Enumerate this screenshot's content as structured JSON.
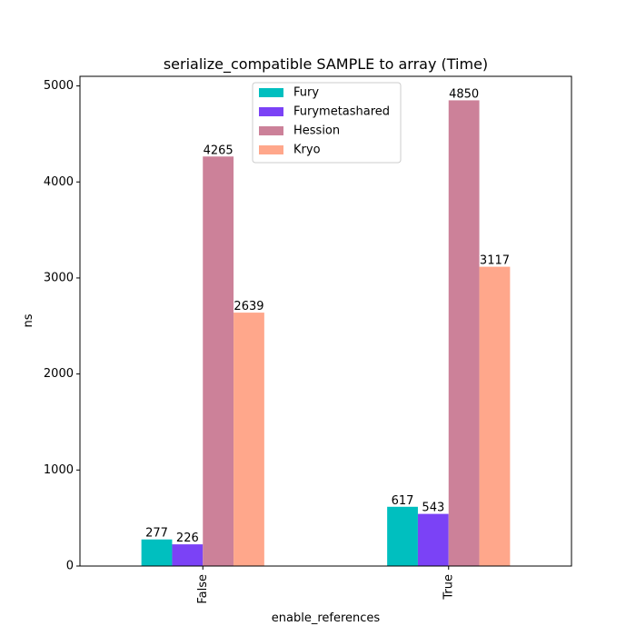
{
  "chart_data": {
    "type": "bar",
    "title": "serialize_compatible SAMPLE to array (Time)",
    "xlabel": "enable_references",
    "ylabel": "ns",
    "categories": [
      "False",
      "True"
    ],
    "ylim": [
      0,
      5100
    ],
    "yticks": [
      0,
      1000,
      2000,
      3000,
      4000,
      5000
    ],
    "legend_position": "top-center",
    "grid": false,
    "series": [
      {
        "name": "Fury",
        "color": "#00bfbf",
        "values": [
          277,
          617
        ],
        "labels": [
          "277",
          "617"
        ]
      },
      {
        "name": "Furymetashared",
        "color": "#7b42f6",
        "values": [
          226,
          543
        ],
        "labels": [
          "226",
          "543"
        ]
      },
      {
        "name": "Hession",
        "color": "#cc8199",
        "values": [
          4265,
          4850
        ],
        "labels": [
          "4265",
          "4850"
        ]
      },
      {
        "name": "Kryo",
        "color": "#ffa78b",
        "values": [
          2639,
          3117
        ],
        "labels": [
          "2639",
          "3117"
        ]
      }
    ]
  }
}
